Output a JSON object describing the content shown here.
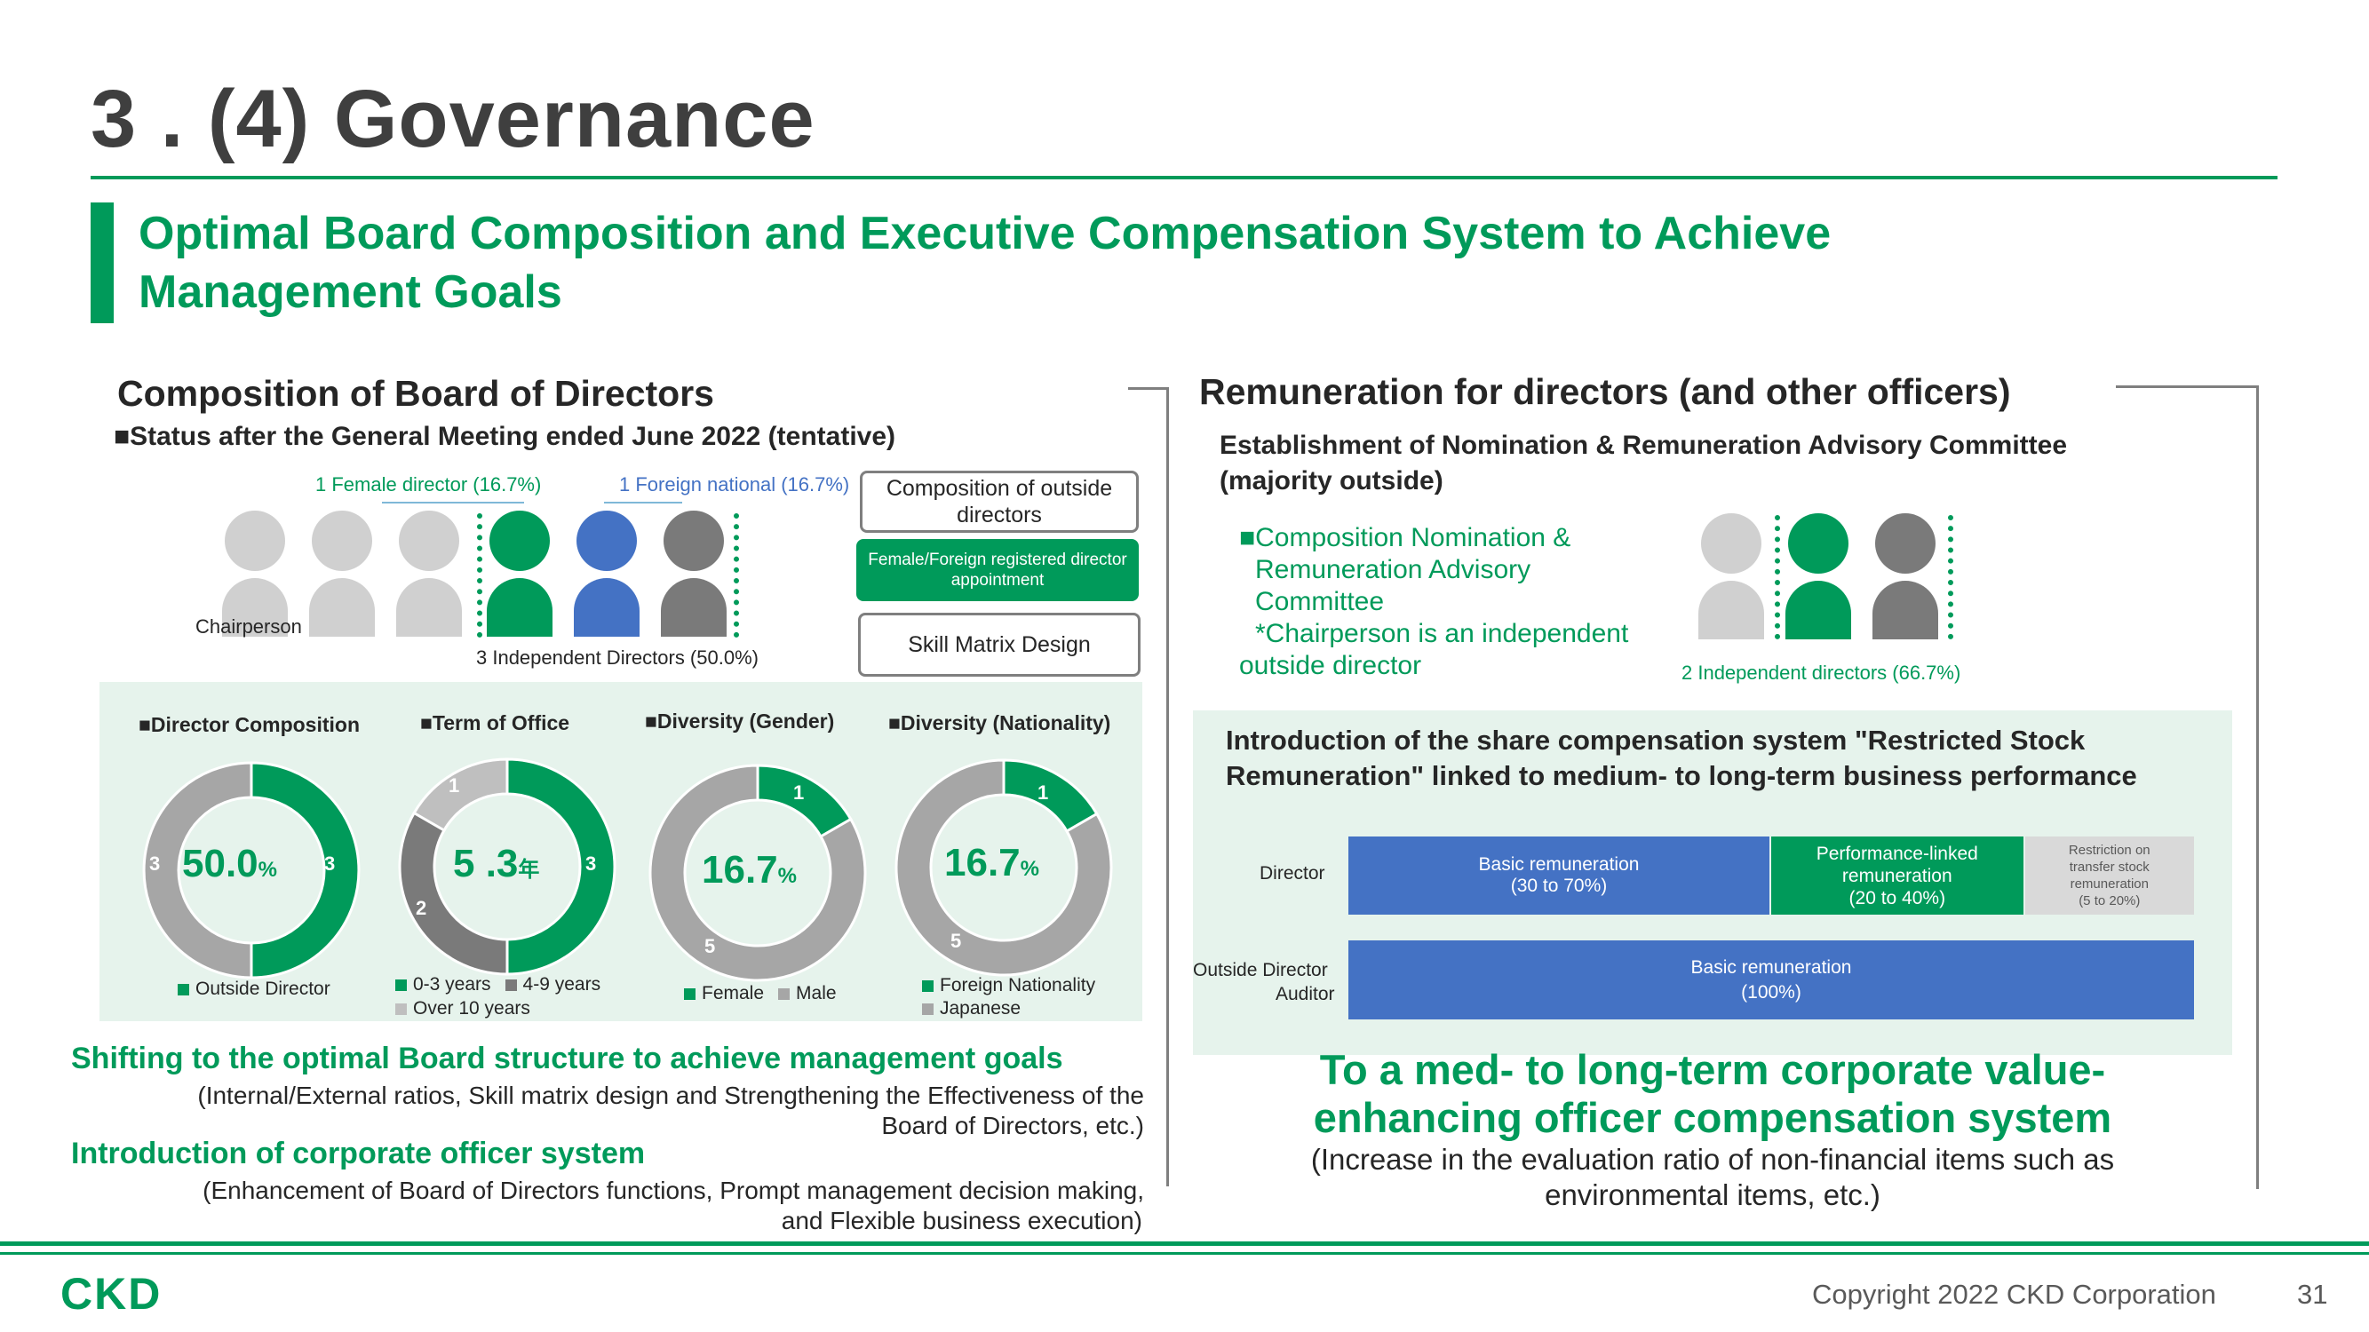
{
  "page": {
    "title": "3 . (4) Governance",
    "subtitle_line1": "Optimal Board Composition and Executive Compensation System to Achieve",
    "subtitle_line2": "Management Goals",
    "footer_logo": "CKD",
    "copyright": "Copyright 2022 CKD Corporation",
    "page_number": "31"
  },
  "colors": {
    "brand_green": "#009a5a",
    "blue": "#4472c4",
    "light_gray": "#d0d0d0",
    "dark_gray": "#7a7a7a",
    "panel_bg": "#e6f3ec"
  },
  "board": {
    "heading": "Composition of Board of Directors",
    "status": "■Status after the General Meeting ended June 2022 (tentative)",
    "female_label": "1 Female director (16.7%)",
    "foreign_label": "1 Foreign national (16.7%)",
    "chairperson_label": "Chairperson",
    "independent_label": "3 Independent Directors (50.0%)",
    "outside_box": "Composition of outside directors",
    "green_box": "Female/Foreign registered director appointment",
    "skill_box": "Skill Matrix Design",
    "people": [
      "gray",
      "gray",
      "gray",
      "green",
      "blue",
      "dark-gray"
    ]
  },
  "donuts": [
    {
      "title": "■Director Composition",
      "center": "50.0",
      "center_unit": "%",
      "label_left": "3",
      "label_right": "3",
      "slices": [
        {
          "name": "Outside Director",
          "value": 3,
          "color": "#009a5a"
        },
        {
          "name": "",
          "value": 3,
          "color": "#a6a6a6"
        }
      ],
      "legend": [
        "Outside Director"
      ]
    },
    {
      "title": "■Term of Office",
      "center": "5 .3",
      "center_unit": "年",
      "label_a": "3",
      "label_b": "2",
      "label_c": "1",
      "slices": [
        {
          "name": "0-3 years",
          "value": 3,
          "color": "#009a5a"
        },
        {
          "name": "4-9 years",
          "value": 2,
          "color": "#7a7a7a"
        },
        {
          "name": "Over 10 years",
          "value": 1,
          "color": "#bfbfbf"
        }
      ],
      "legend": [
        "0-3 years",
        "4-9 years",
        "Over 10 years"
      ]
    },
    {
      "title": "■Diversity (Gender)",
      "center": "16.7",
      "center_unit": "%",
      "label_a": "1",
      "label_b": "5",
      "slices": [
        {
          "name": "Female",
          "value": 1,
          "color": "#009a5a"
        },
        {
          "name": "Male",
          "value": 5,
          "color": "#a6a6a6"
        }
      ],
      "legend": [
        "Female",
        "Male"
      ]
    },
    {
      "title": "■Diversity (Nationality)",
      "center": "16.7",
      "center_unit": "%",
      "label_a": "1",
      "label_b": "5",
      "slices": [
        {
          "name": "Foreign Nationality",
          "value": 1,
          "color": "#009a5a"
        },
        {
          "name": "Japanese",
          "value": 5,
          "color": "#a6a6a6"
        }
      ],
      "legend": [
        "Foreign Nationality",
        "Japanese"
      ]
    }
  ],
  "left_bottom": {
    "line1": "Shifting to the optimal Board structure to achieve management goals",
    "line2": "(Internal/External ratios, Skill matrix design and Strengthening the Effectiveness of the",
    "line3": "Board of Directors, etc.)",
    "line4": "Introduction of corporate officer system",
    "line5": "(Enhancement of Board of Directors functions, Prompt management decision making,",
    "line6": "and Flexible business execution)"
  },
  "remuneration": {
    "heading": "Remuneration for directors (and other officers)",
    "establish_line1": "Establishment of Nomination & Remuneration Advisory Committee",
    "establish_line2": "(majority outside)",
    "committee_line1": "■Composition Nomination &",
    "committee_line2": "Remuneration Advisory",
    "committee_line3": "Committee",
    "committee_line4": "*Chairperson is an independent",
    "committee_line5": "outside director",
    "independent_label": "2 Independent directors (66.7%)",
    "share_line1": "Introduction of the share compensation system \"Restricted Stock",
    "share_line2": "Remuneration\" linked to medium- to long-term business performance",
    "closing_line1": "To a med- to long-term corporate value-",
    "closing_line2": "enhancing officer compensation system",
    "closing_line3": "(Increase in the evaluation ratio of non-financial items such as",
    "closing_line4": "environmental items, etc.)"
  },
  "chart_data": {
    "type": "bar",
    "orientation": "horizontal-stacked",
    "categories": [
      "Director",
      "Outside Director Auditor"
    ],
    "category_labels": [
      "Director",
      "Outside Director",
      "Auditor"
    ],
    "series": [
      {
        "name": "Basic remuneration",
        "label": "Basic remuneration",
        "sub": "(30 to 70%)",
        "values": [
          50,
          100
        ],
        "color": "#4472c4",
        "sub2": "(100%)"
      },
      {
        "name": "Performance-linked remuneration",
        "label": "Performance-linked",
        "label2": "remuneration",
        "sub": "(20 to 40%)",
        "values": [
          30,
          0
        ],
        "color": "#009a5a"
      },
      {
        "name": "Restriction on transfer stock remuneration",
        "label": "Restriction on",
        "label2": "transfer stock",
        "label3": "remuneration",
        "sub": "(5 to 20%)",
        "values": [
          20,
          0
        ],
        "color": "#d9d9d9"
      }
    ]
  }
}
